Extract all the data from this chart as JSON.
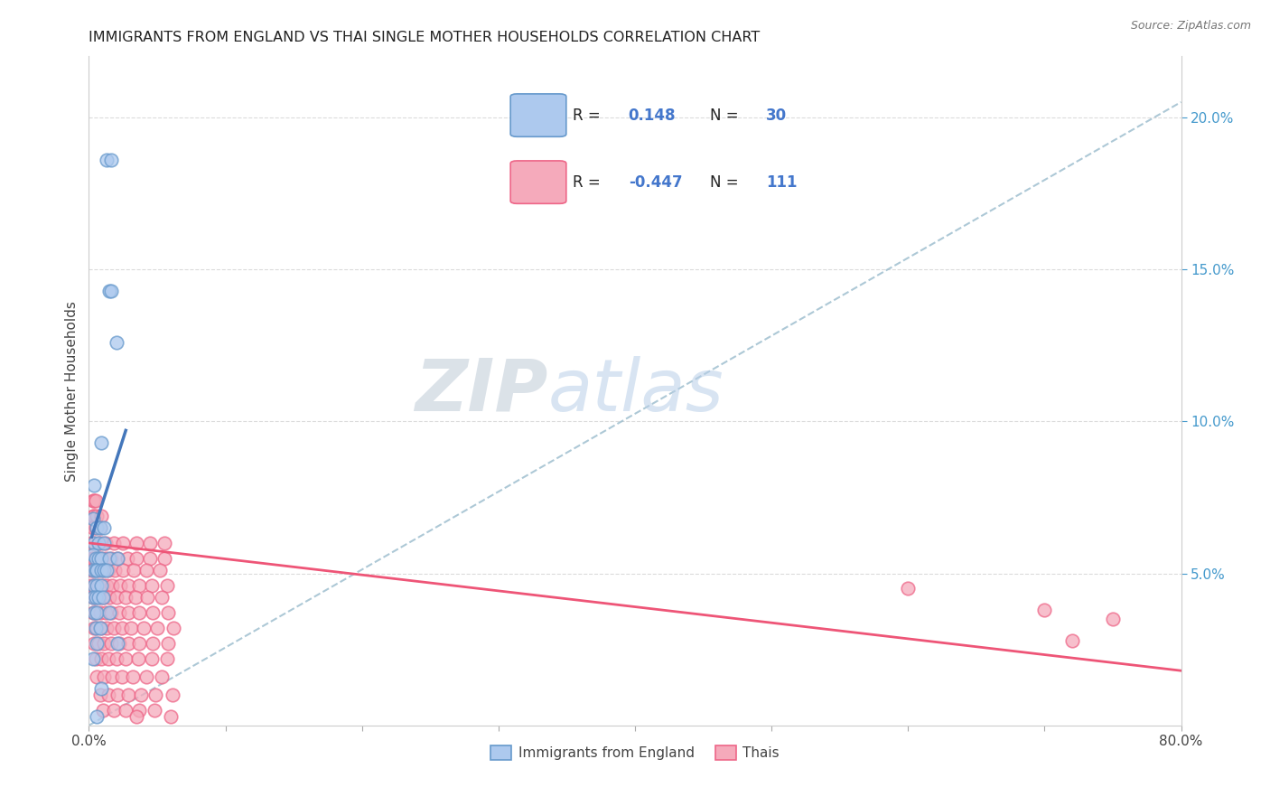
{
  "title": "IMMIGRANTS FROM ENGLAND VS THAI SINGLE MOTHER HOUSEHOLDS CORRELATION CHART",
  "source": "Source: ZipAtlas.com",
  "ylabel": "Single Mother Households",
  "xlim": [
    0.0,
    0.8
  ],
  "ylim": [
    0.0,
    0.22
  ],
  "color_england": "#adc9ee",
  "color_england_edge": "#6699cc",
  "color_thai": "#f5aabb",
  "color_thai_edge": "#ee6688",
  "color_eng_line": "#4477bb",
  "color_thai_line": "#ee5577",
  "color_dashed": "#99bbcc",
  "grid_color": "#cccccc",
  "right_tick_color": "#4499cc",
  "england_pts": [
    [
      0.013,
      0.186
    ],
    [
      0.016,
      0.186
    ],
    [
      0.015,
      0.143
    ],
    [
      0.016,
      0.143
    ],
    [
      0.02,
      0.126
    ],
    [
      0.009,
      0.093
    ],
    [
      0.004,
      0.079
    ],
    [
      0.003,
      0.068
    ],
    [
      0.006,
      0.065
    ],
    [
      0.008,
      0.065
    ],
    [
      0.011,
      0.065
    ],
    [
      0.004,
      0.06
    ],
    [
      0.007,
      0.06
    ],
    [
      0.011,
      0.06
    ],
    [
      0.003,
      0.056
    ],
    [
      0.005,
      0.055
    ],
    [
      0.007,
      0.055
    ],
    [
      0.009,
      0.055
    ],
    [
      0.015,
      0.055
    ],
    [
      0.021,
      0.055
    ],
    [
      0.003,
      0.051
    ],
    [
      0.005,
      0.051
    ],
    [
      0.006,
      0.051
    ],
    [
      0.009,
      0.051
    ],
    [
      0.011,
      0.051
    ],
    [
      0.013,
      0.051
    ],
    [
      0.004,
      0.046
    ],
    [
      0.006,
      0.046
    ],
    [
      0.009,
      0.046
    ],
    [
      0.003,
      0.042
    ],
    [
      0.005,
      0.042
    ],
    [
      0.007,
      0.042
    ],
    [
      0.01,
      0.042
    ],
    [
      0.004,
      0.037
    ],
    [
      0.006,
      0.037
    ],
    [
      0.015,
      0.037
    ],
    [
      0.005,
      0.032
    ],
    [
      0.008,
      0.032
    ],
    [
      0.006,
      0.027
    ],
    [
      0.021,
      0.027
    ],
    [
      0.003,
      0.022
    ],
    [
      0.009,
      0.012
    ],
    [
      0.006,
      0.003
    ]
  ],
  "thai_pts": [
    [
      0.003,
      0.074
    ],
    [
      0.004,
      0.074
    ],
    [
      0.005,
      0.074
    ],
    [
      0.003,
      0.069
    ],
    [
      0.004,
      0.069
    ],
    [
      0.006,
      0.069
    ],
    [
      0.009,
      0.069
    ],
    [
      0.003,
      0.065
    ],
    [
      0.005,
      0.065
    ],
    [
      0.008,
      0.065
    ],
    [
      0.002,
      0.06
    ],
    [
      0.004,
      0.06
    ],
    [
      0.007,
      0.06
    ],
    [
      0.009,
      0.06
    ],
    [
      0.012,
      0.06
    ],
    [
      0.018,
      0.06
    ],
    [
      0.025,
      0.06
    ],
    [
      0.035,
      0.06
    ],
    [
      0.045,
      0.06
    ],
    [
      0.055,
      0.06
    ],
    [
      0.002,
      0.055
    ],
    [
      0.004,
      0.055
    ],
    [
      0.006,
      0.055
    ],
    [
      0.009,
      0.055
    ],
    [
      0.012,
      0.055
    ],
    [
      0.016,
      0.055
    ],
    [
      0.021,
      0.055
    ],
    [
      0.028,
      0.055
    ],
    [
      0.035,
      0.055
    ],
    [
      0.045,
      0.055
    ],
    [
      0.055,
      0.055
    ],
    [
      0.002,
      0.051
    ],
    [
      0.004,
      0.051
    ],
    [
      0.007,
      0.051
    ],
    [
      0.01,
      0.051
    ],
    [
      0.014,
      0.051
    ],
    [
      0.019,
      0.051
    ],
    [
      0.025,
      0.051
    ],
    [
      0.033,
      0.051
    ],
    [
      0.042,
      0.051
    ],
    [
      0.052,
      0.051
    ],
    [
      0.002,
      0.046
    ],
    [
      0.004,
      0.046
    ],
    [
      0.007,
      0.046
    ],
    [
      0.01,
      0.046
    ],
    [
      0.013,
      0.046
    ],
    [
      0.017,
      0.046
    ],
    [
      0.023,
      0.046
    ],
    [
      0.029,
      0.046
    ],
    [
      0.037,
      0.046
    ],
    [
      0.046,
      0.046
    ],
    [
      0.057,
      0.046
    ],
    [
      0.003,
      0.042
    ],
    [
      0.005,
      0.042
    ],
    [
      0.008,
      0.042
    ],
    [
      0.011,
      0.042
    ],
    [
      0.015,
      0.042
    ],
    [
      0.02,
      0.042
    ],
    [
      0.027,
      0.042
    ],
    [
      0.034,
      0.042
    ],
    [
      0.043,
      0.042
    ],
    [
      0.053,
      0.042
    ],
    [
      0.003,
      0.037
    ],
    [
      0.005,
      0.037
    ],
    [
      0.008,
      0.037
    ],
    [
      0.012,
      0.037
    ],
    [
      0.016,
      0.037
    ],
    [
      0.022,
      0.037
    ],
    [
      0.029,
      0.037
    ],
    [
      0.037,
      0.037
    ],
    [
      0.047,
      0.037
    ],
    [
      0.058,
      0.037
    ],
    [
      0.004,
      0.032
    ],
    [
      0.006,
      0.032
    ],
    [
      0.009,
      0.032
    ],
    [
      0.013,
      0.032
    ],
    [
      0.018,
      0.032
    ],
    [
      0.024,
      0.032
    ],
    [
      0.031,
      0.032
    ],
    [
      0.04,
      0.032
    ],
    [
      0.05,
      0.032
    ],
    [
      0.062,
      0.032
    ],
    [
      0.004,
      0.027
    ],
    [
      0.007,
      0.027
    ],
    [
      0.011,
      0.027
    ],
    [
      0.016,
      0.027
    ],
    [
      0.022,
      0.027
    ],
    [
      0.029,
      0.027
    ],
    [
      0.037,
      0.027
    ],
    [
      0.047,
      0.027
    ],
    [
      0.058,
      0.027
    ],
    [
      0.005,
      0.022
    ],
    [
      0.009,
      0.022
    ],
    [
      0.014,
      0.022
    ],
    [
      0.02,
      0.022
    ],
    [
      0.027,
      0.022
    ],
    [
      0.036,
      0.022
    ],
    [
      0.046,
      0.022
    ],
    [
      0.057,
      0.022
    ],
    [
      0.006,
      0.016
    ],
    [
      0.011,
      0.016
    ],
    [
      0.017,
      0.016
    ],
    [
      0.024,
      0.016
    ],
    [
      0.032,
      0.016
    ],
    [
      0.042,
      0.016
    ],
    [
      0.053,
      0.016
    ],
    [
      0.008,
      0.01
    ],
    [
      0.014,
      0.01
    ],
    [
      0.021,
      0.01
    ],
    [
      0.029,
      0.01
    ],
    [
      0.038,
      0.01
    ],
    [
      0.049,
      0.01
    ],
    [
      0.061,
      0.01
    ],
    [
      0.6,
      0.045
    ],
    [
      0.01,
      0.005
    ],
    [
      0.018,
      0.005
    ],
    [
      0.027,
      0.005
    ],
    [
      0.037,
      0.005
    ],
    [
      0.048,
      0.005
    ],
    [
      0.7,
      0.038
    ],
    [
      0.035,
      0.003
    ],
    [
      0.06,
      0.003
    ],
    [
      0.75,
      0.035
    ],
    [
      0.72,
      0.028
    ]
  ],
  "eng_line_x": [
    0.002,
    0.027
  ],
  "eng_line_y": [
    0.062,
    0.097
  ],
  "thai_line_x": [
    0.0,
    0.8
  ],
  "thai_line_y": [
    0.06,
    0.018
  ]
}
